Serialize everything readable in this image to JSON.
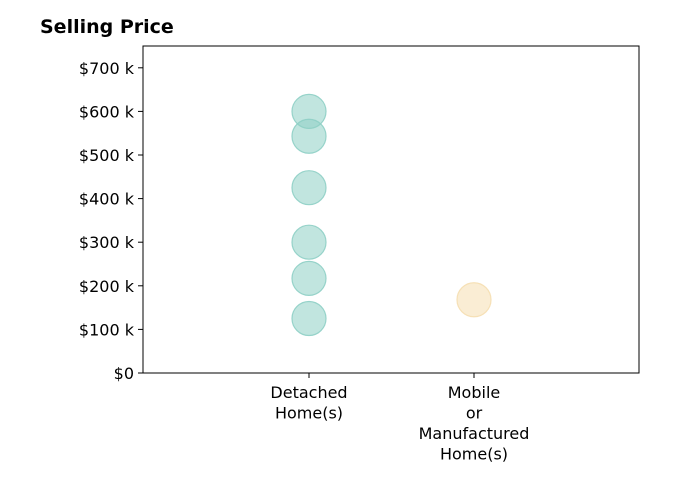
{
  "chart_data": {
    "type": "scatter",
    "title": "Selling Price",
    "xlabel": "",
    "ylabel": "",
    "categories": [
      [
        "Detached",
        "Home(s)"
      ],
      [
        "Mobile",
        "or",
        "Manufactured",
        "Home(s)"
      ]
    ],
    "ylim": [
      0,
      750000
    ],
    "yticks": [
      0,
      100000,
      200000,
      300000,
      400000,
      500000,
      600000,
      700000
    ],
    "ytick_labels": [
      "$0",
      "$100 k",
      "$200 k",
      "$300 k",
      "$400 k",
      "$500 k",
      "$600 k",
      "$700 k"
    ],
    "grid": false,
    "series": [
      {
        "category_index": 0,
        "values": [
          600000,
          543000,
          425000,
          300000,
          217000,
          125000
        ],
        "color": "#8ecfc5"
      },
      {
        "category_index": 1,
        "values": [
          168000
        ],
        "color": "#f5deb0"
      }
    ]
  }
}
